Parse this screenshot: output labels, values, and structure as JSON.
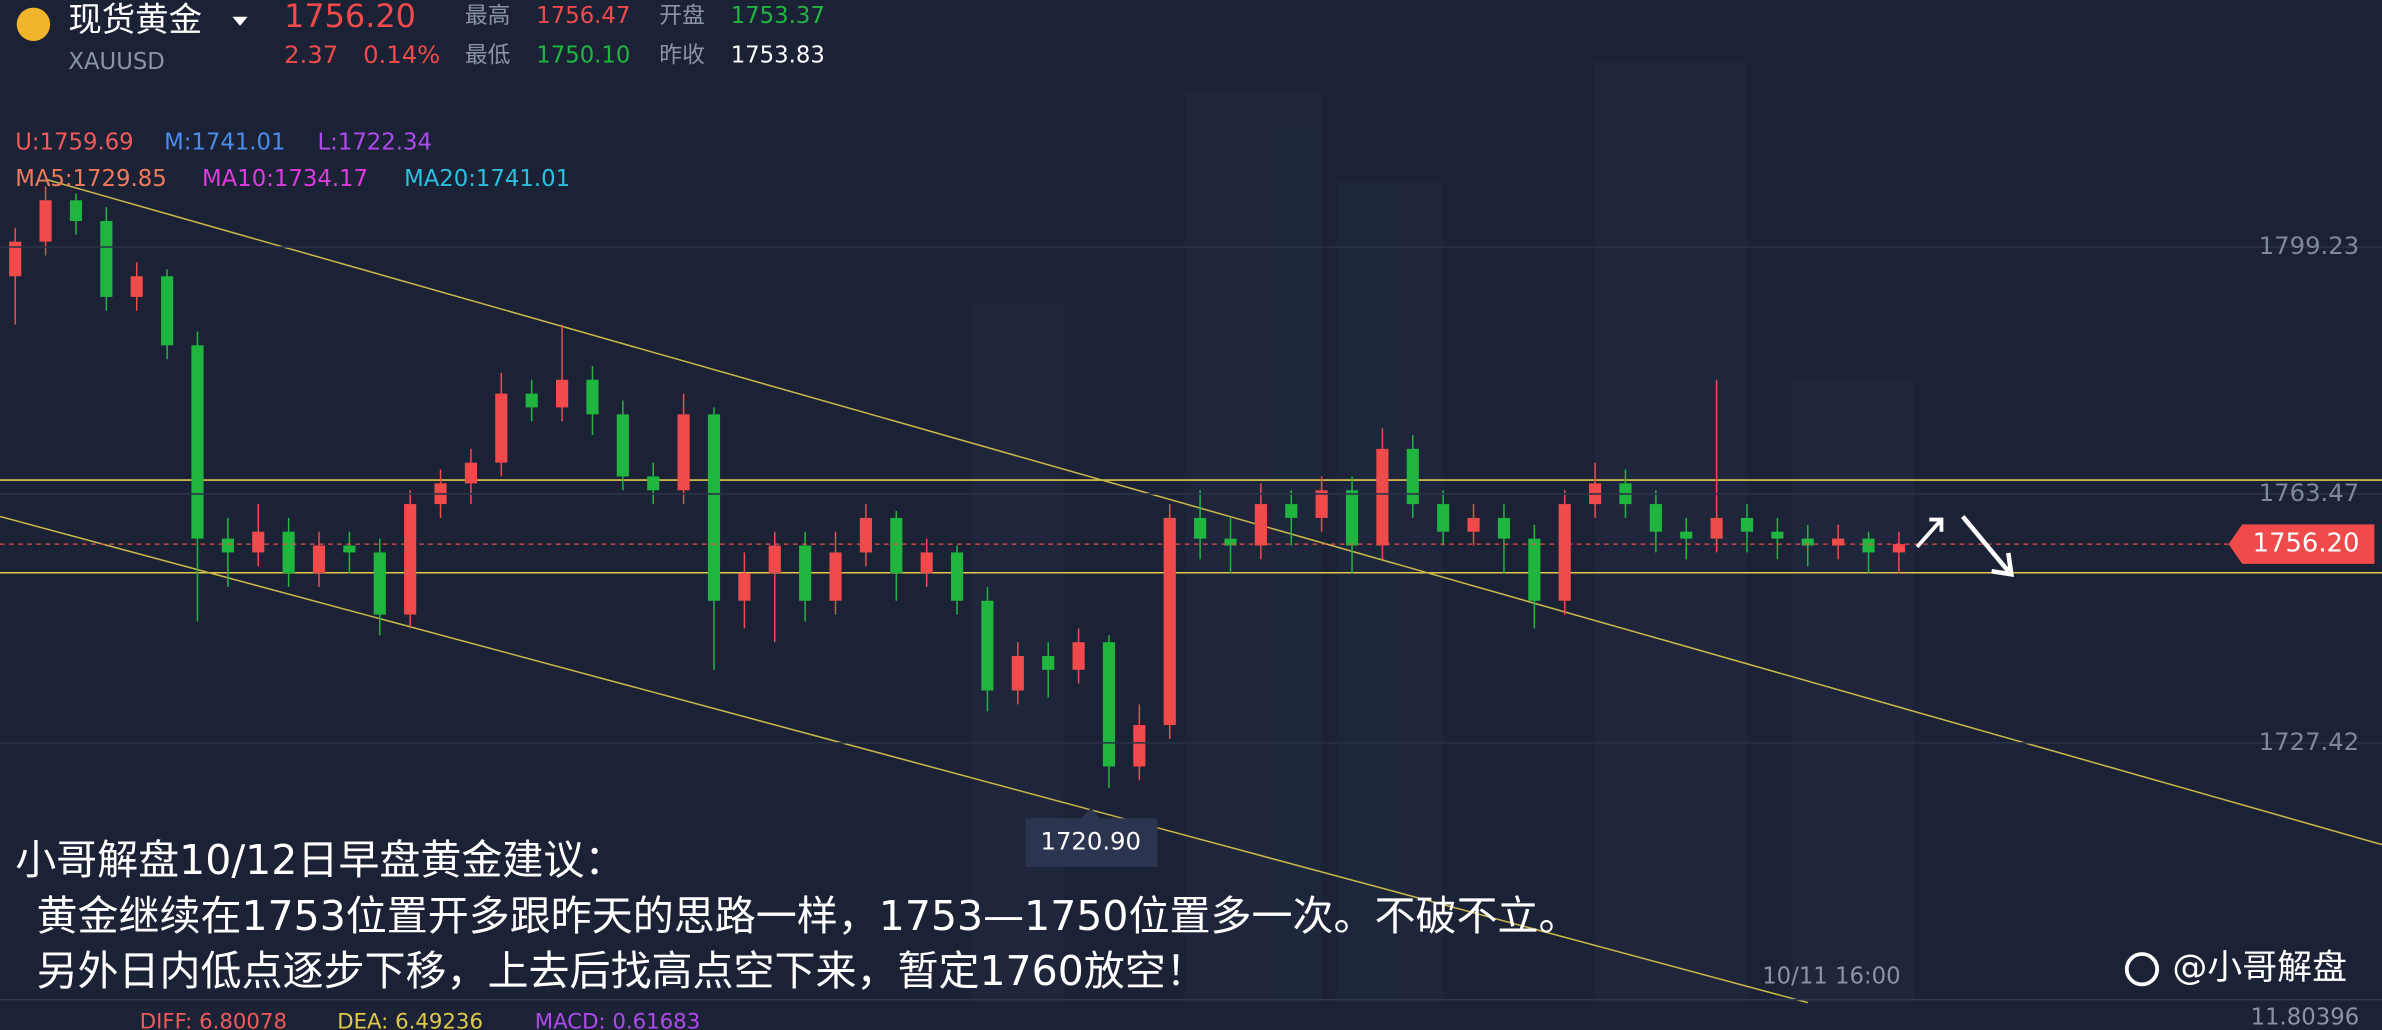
{
  "header": {
    "name": "现货黄金",
    "symbol": "XAUUSD",
    "price": "1756.20",
    "change": "2.37",
    "change_pct": "0.14%",
    "stats": [
      {
        "label": "最高",
        "value": "1756.47"
      },
      {
        "label": "开盘",
        "value": "1753.37"
      },
      {
        "label": "最低",
        "value": "1750.10"
      },
      {
        "label": "昨收",
        "value": "1753.83"
      }
    ]
  },
  "indicators": {
    "boll": [
      "U:1759.69",
      "M:1741.01",
      "L:1722.34"
    ],
    "ma": [
      "MA5:1729.85",
      "MA10:1734.17",
      "MA20:1741.01"
    ]
  },
  "chart_data": {
    "type": "candlestick",
    "ylim": [
      1692,
      1835
    ],
    "yticks": [
      1799.23,
      1763.47,
      1727.42
    ],
    "up_color": "#f04a4a",
    "down_color": "#1fb53f",
    "price_tag": {
      "value": 1756.2,
      "label": "1756.20"
    },
    "low_annotation": {
      "value": 1720.9,
      "label": "1720.90"
    },
    "ohlc": [
      [
        1795,
        1802,
        1788,
        1800
      ],
      [
        1800,
        1808,
        1798,
        1806
      ],
      [
        1806,
        1807,
        1801,
        1803
      ],
      [
        1803,
        1805,
        1790,
        1792
      ],
      [
        1792,
        1797,
        1790,
        1795
      ],
      [
        1795,
        1796,
        1783,
        1785
      ],
      [
        1785,
        1787,
        1745,
        1757
      ],
      [
        1757,
        1760,
        1750,
        1755
      ],
      [
        1755,
        1762,
        1753,
        1758
      ],
      [
        1758,
        1760,
        1750,
        1752
      ],
      [
        1752,
        1758,
        1750,
        1756
      ],
      [
        1756,
        1758,
        1752,
        1755
      ],
      [
        1755,
        1757,
        1743,
        1746
      ],
      [
        1746,
        1764,
        1744,
        1762
      ],
      [
        1762,
        1767,
        1760,
        1765
      ],
      [
        1765,
        1770,
        1762,
        1768
      ],
      [
        1768,
        1781,
        1766,
        1778
      ],
      [
        1778,
        1780,
        1774,
        1776
      ],
      [
        1776,
        1788,
        1774,
        1780
      ],
      [
        1780,
        1782,
        1772,
        1775
      ],
      [
        1775,
        1777,
        1764,
        1766
      ],
      [
        1766,
        1768,
        1762,
        1764
      ],
      [
        1764,
        1778,
        1762,
        1775
      ],
      [
        1775,
        1776,
        1738,
        1748
      ],
      [
        1748,
        1755,
        1744,
        1752
      ],
      [
        1752,
        1758,
        1742,
        1756
      ],
      [
        1756,
        1758,
        1745,
        1748
      ],
      [
        1748,
        1758,
        1746,
        1755
      ],
      [
        1755,
        1762,
        1753,
        1760
      ],
      [
        1760,
        1761,
        1748,
        1752
      ],
      [
        1752,
        1757,
        1750,
        1755
      ],
      [
        1755,
        1756,
        1746,
        1748
      ],
      [
        1748,
        1750,
        1732,
        1735
      ],
      [
        1735,
        1742,
        1733,
        1740
      ],
      [
        1740,
        1742,
        1734,
        1738
      ],
      [
        1738,
        1744,
        1736,
        1742
      ],
      [
        1742,
        1743,
        1720.9,
        1724
      ],
      [
        1724,
        1733,
        1722,
        1730
      ],
      [
        1730,
        1762,
        1728,
        1760
      ],
      [
        1760,
        1764,
        1754,
        1757
      ],
      [
        1757,
        1760,
        1752,
        1756
      ],
      [
        1756,
        1765,
        1754,
        1762
      ],
      [
        1762,
        1764,
        1756,
        1760
      ],
      [
        1760,
        1766,
        1758,
        1764
      ],
      [
        1764,
        1766,
        1752,
        1756
      ],
      [
        1756,
        1773,
        1754,
        1770
      ],
      [
        1770,
        1772,
        1760,
        1762
      ],
      [
        1762,
        1764,
        1756,
        1758
      ],
      [
        1758,
        1762,
        1756,
        1760
      ],
      [
        1760,
        1762,
        1752,
        1757
      ],
      [
        1757,
        1759,
        1744,
        1748
      ],
      [
        1748,
        1764,
        1746,
        1762
      ],
      [
        1762,
        1768,
        1760,
        1765
      ],
      [
        1765,
        1767,
        1760,
        1762
      ],
      [
        1762,
        1764,
        1755,
        1758
      ],
      [
        1758,
        1760,
        1754,
        1757
      ],
      [
        1757,
        1780,
        1755,
        1760
      ],
      [
        1760,
        1762,
        1755,
        1758
      ],
      [
        1758,
        1760,
        1754,
        1757
      ],
      [
        1757,
        1759,
        1753,
        1756
      ],
      [
        1756,
        1759,
        1754,
        1757
      ],
      [
        1757,
        1758,
        1752,
        1755
      ],
      [
        1755,
        1758,
        1752,
        1756.2
      ]
    ]
  },
  "time_label": "10/11 16:00",
  "macd": {
    "diff": "DIFF: 6.80078",
    "dea": "DEA: 6.49236",
    "macd": "MACD: 0.61683",
    "axis": "11.80396"
  },
  "overlay": {
    "title": "小哥解盘10/12日早盘黄金建议：",
    "lines": [
      "黄金继续在1753位置开多跟昨天的思路一样，1753—1750位置多一次。不破不立。",
      "另外日内低点逐步下移，上去后找高点空下来，暂定1760放空！"
    ],
    "watermark": "@小哥解盘"
  }
}
